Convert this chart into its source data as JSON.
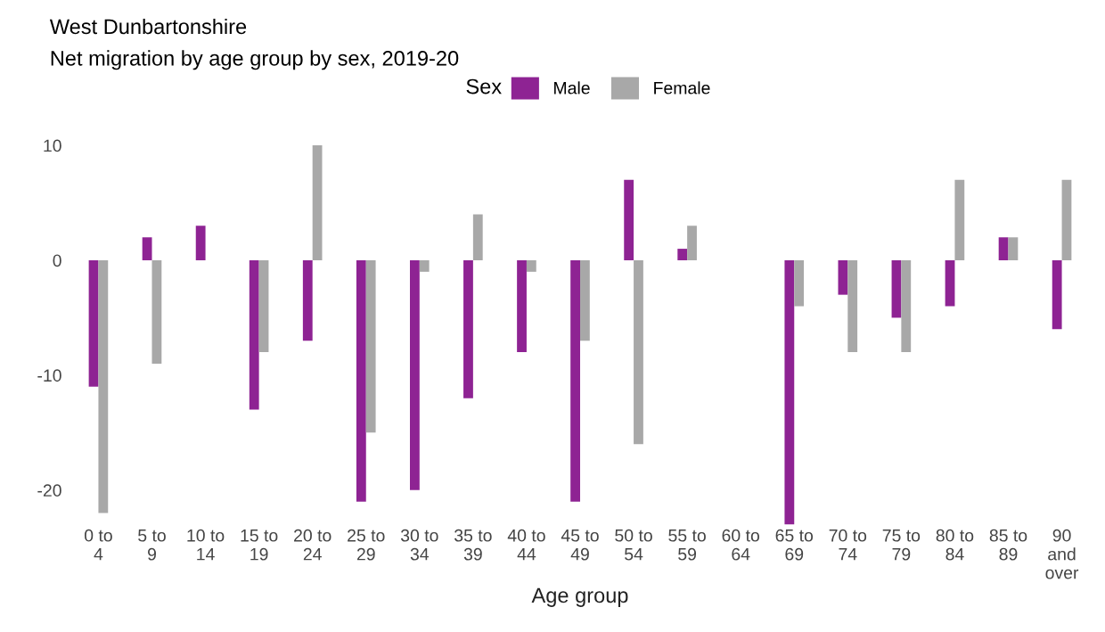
{
  "chart_data": {
    "type": "bar",
    "title": "West Dunbartonshire",
    "subtitle": "Net migration by age group by sex, 2019-20",
    "xlabel": "Age group",
    "legend_title": "Sex",
    "legend": "top",
    "categories": [
      "0 to\n4",
      "5 to\n9",
      "10 to\n14",
      "15 to\n19",
      "20 to\n24",
      "25 to\n29",
      "30 to\n34",
      "35 to\n39",
      "40 to\n44",
      "45 to\n49",
      "50 to\n54",
      "55 to\n59",
      "60 to\n64",
      "65 to\n69",
      "70 to\n74",
      "75 to\n79",
      "80 to\n84",
      "85 to\n89",
      "90\nand\nover"
    ],
    "series": [
      {
        "name": "Male",
        "color": "#8e2393",
        "values": [
          -11,
          2,
          3,
          -13,
          -7,
          -21,
          -20,
          -12,
          -8,
          -21,
          7,
          1,
          0,
          -23,
          -3,
          -5,
          -4,
          2,
          -6
        ]
      },
      {
        "name": "Female",
        "color": "#a8a8a8",
        "values": [
          -22,
          -9,
          0,
          -8,
          10,
          -15,
          -1,
          4,
          -1,
          -7,
          -16,
          3,
          0,
          -4,
          -8,
          -8,
          7,
          2,
          7
        ]
      }
    ],
    "ylim": [
      -23,
      10
    ],
    "yticks": [
      -20,
      -10,
      0,
      10
    ],
    "grid": false
  }
}
